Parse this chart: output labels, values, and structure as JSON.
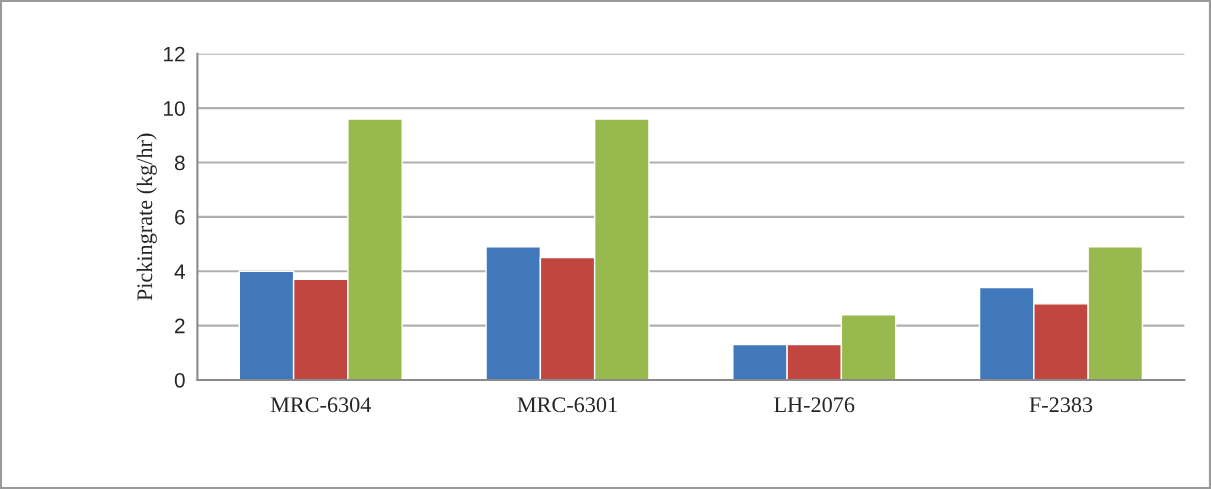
{
  "chart_data": {
    "type": "bar",
    "ylabel": "Pickingrate (kg/hr)",
    "categories": [
      "MRC-6304",
      "MRC-6301",
      "LH-2076",
      "F-2383"
    ],
    "series": [
      {
        "color": "#4178bc",
        "values": [
          4.0,
          4.9,
          1.3,
          3.4
        ]
      },
      {
        "color": "#c0463f",
        "values": [
          3.7,
          4.5,
          1.3,
          2.8
        ]
      },
      {
        "color": "#98b94d",
        "values": [
          9.6,
          9.6,
          2.4,
          4.9
        ]
      }
    ],
    "ylim": [
      0,
      12
    ],
    "yticks": [
      0,
      2,
      4,
      6,
      8,
      10,
      12
    ],
    "grid": "y",
    "legend": false
  }
}
